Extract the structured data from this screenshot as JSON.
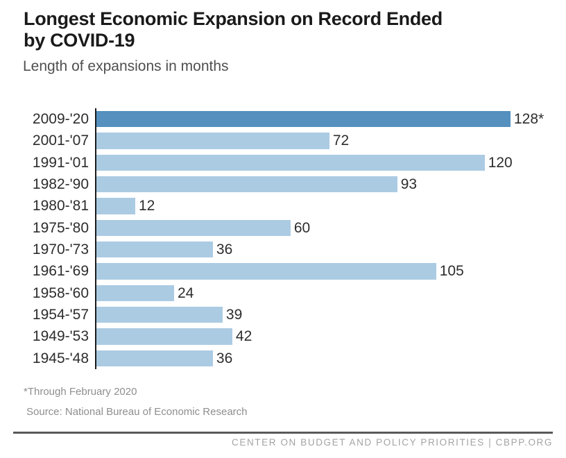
{
  "header": {
    "title_line1": "Longest Economic Expansion on Record Ended",
    "title_line2": "by COVID-19",
    "subtitle": "Length of expansions in months"
  },
  "chart_data": {
    "type": "bar",
    "orientation": "horizontal",
    "title": "Longest Economic Expansion on Record Ended by COVID-19",
    "subtitle": "Length of expansions in months",
    "xlabel": "",
    "ylabel": "",
    "xlim": [
      0,
      128
    ],
    "grid": false,
    "legend": false,
    "categories": [
      "2009-'20",
      "2001-'07",
      "1991-'01",
      "1982-'90",
      "1980-'81",
      "1975-'80",
      "1970-'73",
      "1961-'69",
      "1958-'60",
      "1954-'57",
      "1949-'53",
      "1945-'48"
    ],
    "values": [
      128,
      72,
      120,
      93,
      12,
      60,
      36,
      105,
      24,
      39,
      42,
      36
    ],
    "value_labels": [
      "128*",
      "72",
      "120",
      "93",
      "12",
      "60",
      "36",
      "105",
      "24",
      "39",
      "42",
      "36"
    ],
    "highlight_index": 0,
    "colors": {
      "highlight_bar": "#5590bf",
      "default_bar": "#abcbe3",
      "axis_line": "#1a1a1a"
    }
  },
  "footnotes": {
    "asterisk": "*Through February 2020",
    "source": "Source: National Bureau of Economic Research"
  },
  "footer": {
    "text": "CENTER ON BUDGET AND POLICY PRIORITIES | CBPP.ORG"
  }
}
